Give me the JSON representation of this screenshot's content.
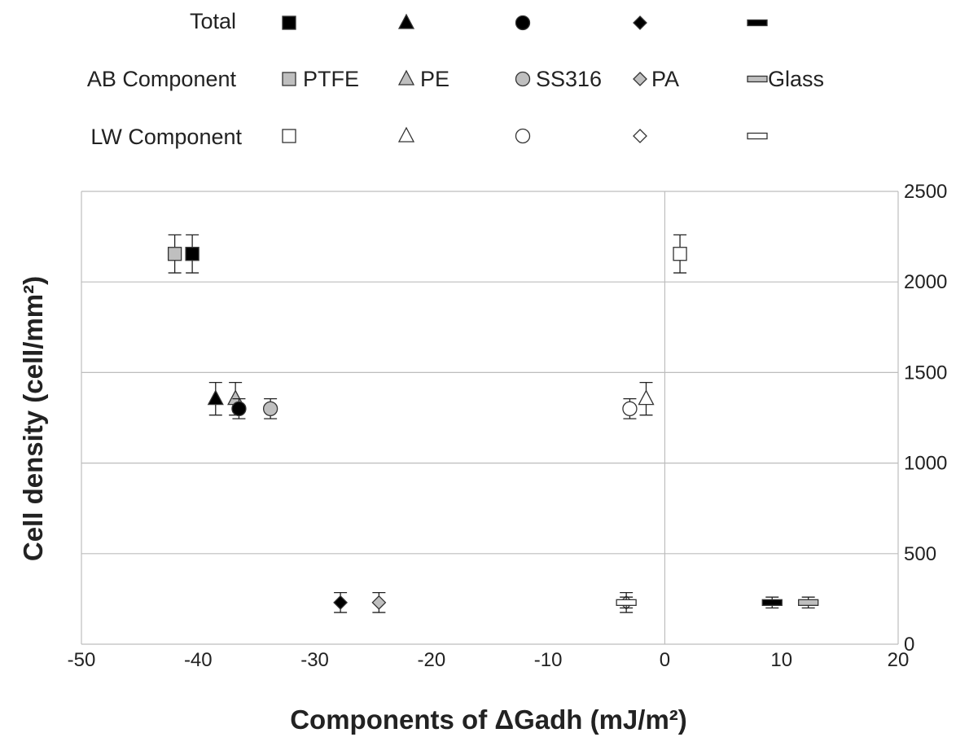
{
  "chart_data": {
    "type": "scatter",
    "title": "",
    "xlabel": "Components of ΔGadh (mJ/m²)",
    "ylabel": "Cell density (cell/mm²)",
    "xlim": [
      -50,
      20
    ],
    "ylim": [
      0,
      2500
    ],
    "x_ticks": [
      -50,
      -40,
      -30,
      -20,
      -10,
      0,
      10,
      20
    ],
    "y_ticks": [
      0,
      500,
      1000,
      1500,
      2000,
      2500
    ],
    "y_axis_side": "right",
    "grid": "horizontal major gridlines",
    "legend": {
      "placement": "top",
      "row_labels": [
        "Total",
        "AB Component",
        "LW Component"
      ],
      "materials": [
        "PTFE",
        "PE",
        "SS316",
        "PA",
        "Glass"
      ]
    },
    "series": [
      {
        "component": "Total",
        "material": "PTFE",
        "marker": "square",
        "fill": "#000000",
        "x": -40.5,
        "y": 2155,
        "error": 105
      },
      {
        "component": "AB Component",
        "material": "PTFE",
        "marker": "square",
        "fill": "#bfbfbf",
        "x": -42.0,
        "y": 2155,
        "error": 105
      },
      {
        "component": "LW Component",
        "material": "PTFE",
        "marker": "square",
        "fill": "#ffffff",
        "x": 1.3,
        "y": 2155,
        "error": 105
      },
      {
        "component": "Total",
        "material": "PE",
        "marker": "triangle",
        "fill": "#000000",
        "x": -38.5,
        "y": 1355,
        "error": 90
      },
      {
        "component": "AB Component",
        "material": "PE",
        "marker": "triangle",
        "fill": "#bfbfbf",
        "x": -36.8,
        "y": 1355,
        "error": 90
      },
      {
        "component": "LW Component",
        "material": "PE",
        "marker": "triangle",
        "fill": "#ffffff",
        "x": -1.6,
        "y": 1355,
        "error": 90
      },
      {
        "component": "Total",
        "material": "SS316",
        "marker": "circle",
        "fill": "#000000",
        "x": -36.5,
        "y": 1300,
        "error": 55
      },
      {
        "component": "AB Component",
        "material": "SS316",
        "marker": "circle",
        "fill": "#bfbfbf",
        "x": -33.8,
        "y": 1300,
        "error": 55
      },
      {
        "component": "LW Component",
        "material": "SS316",
        "marker": "circle",
        "fill": "#ffffff",
        "x": -3.0,
        "y": 1300,
        "error": 55
      },
      {
        "component": "Total",
        "material": "PA",
        "marker": "diamond",
        "fill": "#000000",
        "x": -27.8,
        "y": 230,
        "error": 55
      },
      {
        "component": "AB Component",
        "material": "PA",
        "marker": "diamond",
        "fill": "#bfbfbf",
        "x": -24.5,
        "y": 230,
        "error": 55
      },
      {
        "component": "LW Component",
        "material": "PA",
        "marker": "diamond",
        "fill": "#ffffff",
        "x": -3.3,
        "y": 230,
        "error": 55
      },
      {
        "component": "Total",
        "material": "Glass",
        "marker": "dash",
        "fill": "#000000",
        "x": 9.2,
        "y": 230,
        "error": 30
      },
      {
        "component": "AB Component",
        "material": "Glass",
        "marker": "dash",
        "fill": "#bfbfbf",
        "x": 12.3,
        "y": 230,
        "error": 30
      },
      {
        "component": "LW Component",
        "material": "Glass",
        "marker": "dash",
        "fill": "#ffffff",
        "x": -3.3,
        "y": 230,
        "error": 30
      }
    ],
    "colors": {
      "total": "#000000",
      "ab": "#bfbfbf",
      "lw": "#ffffff",
      "stroke": "#333333",
      "grid": "#bdbdbd"
    }
  }
}
